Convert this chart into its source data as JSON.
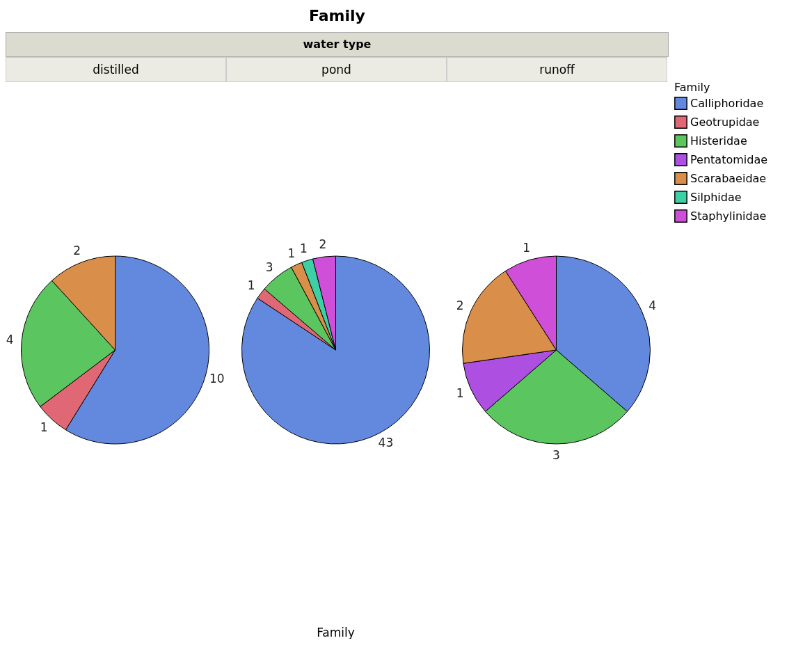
{
  "chart_data": [
    {
      "type": "pie",
      "title": "distilled",
      "annotations": [
        "Family",
        "water type"
      ],
      "categories": [
        null,
        null,
        null,
        null,
        null,
        null,
        null
      ],
      "values": [
        10,
        1,
        4,
        null,
        2,
        null,
        null
      ],
      "colors": [
        "#6389df",
        "#df6874",
        "#5bc660",
        "#ad4fe0",
        "#d98e4a",
        "#3dd0a5",
        "#d04fd8"
      ],
      "data_labels": true
    },
    {
      "type": "pie",
      "title": "pond",
      "xlabel": "Family",
      "categories": [
        null,
        null,
        null,
        null,
        null,
        null,
        null
      ],
      "values": [
        43,
        1,
        3,
        null,
        1,
        1,
        2
      ],
      "colors": [
        "#6389df",
        "#df6874",
        "#5bc660",
        "#ad4fe0",
        "#d98e4a",
        "#3dd0a5",
        "#d04fd8"
      ],
      "data_labels": true
    },
    {
      "type": "pie",
      "title": "runoff",
      "legend": "right",
      "legend_title": "Family",
      "categories": [
        "Calliphoridae",
        "Geotrupidae",
        "Histeridae",
        "Pentatomidae",
        "Scarabaeidae",
        "Silphidae",
        "Staphylinidae"
      ],
      "values": [
        4,
        null,
        3,
        1,
        2,
        null,
        1
      ],
      "colors": [
        "#6389df",
        "#df6874",
        "#5bc660",
        "#ad4fe0",
        "#d98e4a",
        "#3dd0a5",
        "#d04fd8"
      ],
      "data_labels": true
    }
  ]
}
